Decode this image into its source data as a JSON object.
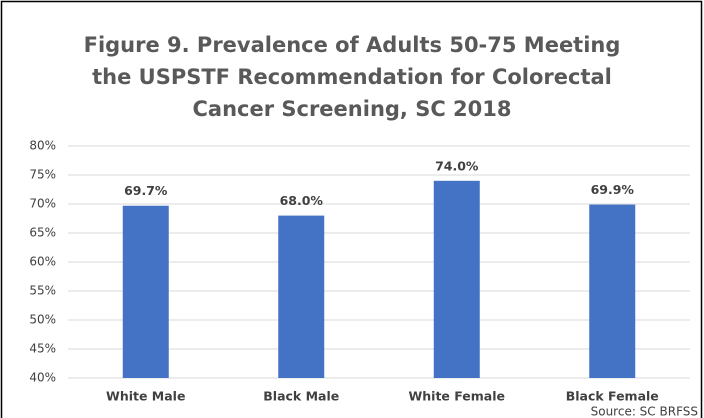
{
  "chart_data": {
    "type": "bar",
    "title": [
      "Figure 9. Prevalence of Adults 50-75 Meeting",
      "the USPSTF Recommendation for Colorectal",
      "Cancer Screening, SC 2018"
    ],
    "categories": [
      "White Male",
      "Black Male",
      "White Female",
      "Black Female"
    ],
    "values": [
      69.7,
      68.0,
      74.0,
      69.9
    ],
    "value_labels": [
      "69.7%",
      "68.0%",
      "74.0%",
      "69.9%"
    ],
    "color": "#4472c4",
    "ylim": [
      40,
      80
    ],
    "yticks": [
      {
        "value": 40,
        "label": "40%"
      },
      {
        "value": 45,
        "label": "45%"
      },
      {
        "value": 50,
        "label": "50%"
      },
      {
        "value": 55,
        "label": "55%"
      },
      {
        "value": 60,
        "label": "60%"
      },
      {
        "value": 65,
        "label": "65%"
      },
      {
        "value": 70,
        "label": "70%"
      },
      {
        "value": 75,
        "label": "75%"
      },
      {
        "value": 80,
        "label": "80%"
      }
    ],
    "grid": true,
    "source": "Source: SC BRFSS"
  }
}
